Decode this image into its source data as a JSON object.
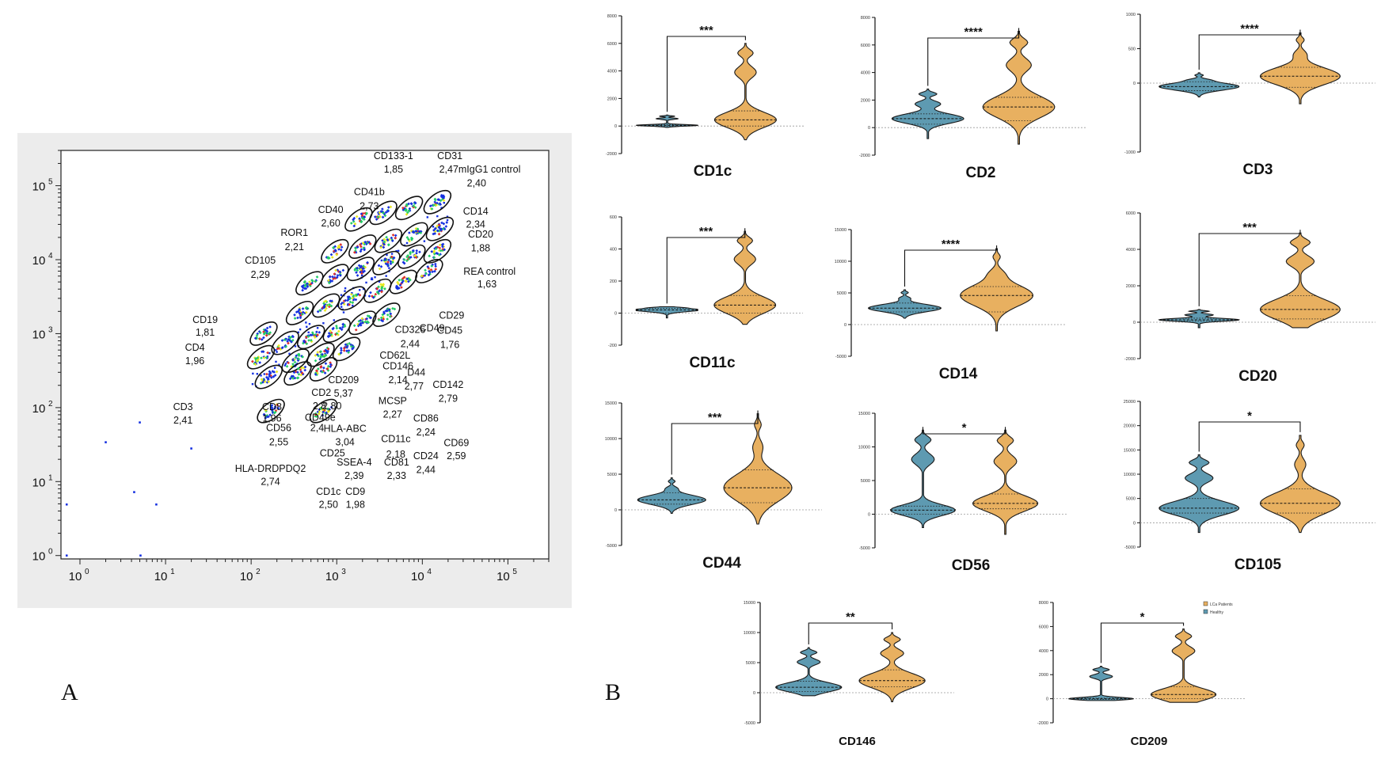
{
  "panels": {
    "a_label": "A",
    "b_label": "B"
  },
  "colors": {
    "healthy": "#5e9ab1",
    "patients": "#e8b060",
    "outline": "#1a1a1a",
    "dot_blue": "#1530e0",
    "dot_green": "#22cc66",
    "dot_yellow": "#e8e820",
    "dot_red": "#e0302a"
  },
  "legend": {
    "items": [
      "LCa Patients",
      "Healthy"
    ]
  },
  "chart_data": [
    {
      "type": "scatter",
      "title": "",
      "xscale": "log",
      "yscale": "log",
      "xlim": [
        0.6,
        300000
      ],
      "ylim": [
        0.9,
        300000
      ],
      "x_ticks": [
        {
          "base": "10",
          "exp": "0",
          "v": 1
        },
        {
          "base": "10",
          "exp": "1",
          "v": 10
        },
        {
          "base": "10",
          "exp": "2",
          "v": 100
        },
        {
          "base": "10",
          "exp": "3",
          "v": 1000
        },
        {
          "base": "10",
          "exp": "4",
          "v": 10000
        },
        {
          "base": "10",
          "exp": "5",
          "v": 100000
        }
      ],
      "y_ticks": [
        {
          "base": "10",
          "exp": "0",
          "v": 1
        },
        {
          "base": "10",
          "exp": "1",
          "v": 10
        },
        {
          "base": "10",
          "exp": "2",
          "v": 100
        },
        {
          "base": "10",
          "exp": "3",
          "v": 1000
        },
        {
          "base": "10",
          "exp": "4",
          "v": 10000
        },
        {
          "base": "10",
          "exp": "5",
          "v": 100000
        }
      ],
      "outlier_points": [
        [
          0.7,
          1
        ],
        [
          0.7,
          4.9
        ],
        [
          2,
          34
        ],
        [
          4.3,
          7.2
        ],
        [
          5,
          63
        ],
        [
          5.1,
          1
        ],
        [
          7.8,
          4.9
        ],
        [
          20,
          28
        ]
      ],
      "clusters": [
        {
          "x": 15000,
          "y": 60000
        },
        {
          "x": 7000,
          "y": 50000
        },
        {
          "x": 3500,
          "y": 43000
        },
        {
          "x": 1800,
          "y": 35000
        },
        {
          "x": 16000,
          "y": 26000
        },
        {
          "x": 8000,
          "y": 22000
        },
        {
          "x": 4000,
          "y": 18000
        },
        {
          "x": 2000,
          "y": 15000
        },
        {
          "x": 950,
          "y": 13000
        },
        {
          "x": 15000,
          "y": 13000
        },
        {
          "x": 7500,
          "y": 11000
        },
        {
          "x": 3800,
          "y": 9000
        },
        {
          "x": 1900,
          "y": 7500
        },
        {
          "x": 950,
          "y": 6000
        },
        {
          "x": 480,
          "y": 4800
        },
        {
          "x": 12000,
          "y": 7000
        },
        {
          "x": 6000,
          "y": 5000
        },
        {
          "x": 3000,
          "y": 3800
        },
        {
          "x": 1500,
          "y": 3000
        },
        {
          "x": 750,
          "y": 2400
        },
        {
          "x": 370,
          "y": 1900
        },
        {
          "x": 3800,
          "y": 1800
        },
        {
          "x": 2000,
          "y": 1400
        },
        {
          "x": 1000,
          "y": 1100
        },
        {
          "x": 500,
          "y": 900
        },
        {
          "x": 250,
          "y": 750
        },
        {
          "x": 140,
          "y": 1000
        },
        {
          "x": 1300,
          "y": 620
        },
        {
          "x": 650,
          "y": 520
        },
        {
          "x": 330,
          "y": 430
        },
        {
          "x": 130,
          "y": 480
        },
        {
          "x": 700,
          "y": 330
        },
        {
          "x": 350,
          "y": 290
        },
        {
          "x": 160,
          "y": 260
        },
        {
          "x": 170,
          "y": 90
        },
        {
          "x": 700,
          "y": 90
        }
      ],
      "annotations": [
        {
          "text": "CD133-1",
          "x": 4600,
          "y": 230000
        },
        {
          "text": "1,85",
          "x": 4600,
          "y": 150000
        },
        {
          "text": "CD31",
          "x": 21000,
          "y": 230000
        },
        {
          "text": "2,47mIgG1 control",
          "x": 47000,
          "y": 150000
        },
        {
          "text": "2,40",
          "x": 43000,
          "y": 98000
        },
        {
          "text": "CD41b",
          "x": 2400,
          "y": 75000
        },
        {
          "text": "2,73",
          "x": 2400,
          "y": 48000
        },
        {
          "text": "CD40",
          "x": 850,
          "y": 43000
        },
        {
          "text": "2,60",
          "x": 850,
          "y": 28000
        },
        {
          "text": "CD14",
          "x": 42000,
          "y": 41000
        },
        {
          "text": "2,34",
          "x": 42000,
          "y": 27000
        },
        {
          "text": "CD20",
          "x": 48000,
          "y": 20000
        },
        {
          "text": "1,88",
          "x": 48000,
          "y": 13000
        },
        {
          "text": "ROR1",
          "x": 320,
          "y": 21000
        },
        {
          "text": "2,21",
          "x": 320,
          "y": 13500
        },
        {
          "text": "CD105",
          "x": 128,
          "y": 8800
        },
        {
          "text": "2,29",
          "x": 128,
          "y": 5700
        },
        {
          "text": "REA control",
          "x": 61000,
          "y": 6300
        },
        {
          "text": "1,63",
          "x": 57000,
          "y": 4200
        },
        {
          "text": "CD19",
          "x": 29,
          "y": 1400
        },
        {
          "text": "1,81",
          "x": 29,
          "y": 940
        },
        {
          "text": "CD29",
          "x": 22000,
          "y": 1600
        },
        {
          "text": "CD49",
          "x": 13000,
          "y": 1080
        },
        {
          "text": "",
          "x": 17000,
          "y": 1080
        },
        {
          "text": "CD326",
          "x": 7200,
          "y": 1020
        },
        {
          "text": "2,44",
          "x": 7200,
          "y": 660
        },
        {
          "text": "CD45",
          "x": 21000,
          "y": 1000
        },
        {
          "text": "1,76",
          "x": 21000,
          "y": 640
        },
        {
          "text": "CD4",
          "x": 22,
          "y": 590
        },
        {
          "text": "1,96",
          "x": 22,
          "y": 385
        },
        {
          "text": "CD62L",
          "x": 4800,
          "y": 460
        },
        {
          "text": "CD146",
          "x": 5200,
          "y": 330
        },
        {
          "text": "2,14",
          "x": 5200,
          "y": 214
        },
        {
          "text": "D44",
          "x": 8500,
          "y": 270
        },
        {
          "text": "2,77",
          "x": 8000,
          "y": 175
        },
        {
          "text": "CD142",
          "x": 20000,
          "y": 185
        },
        {
          "text": "2,79",
          "x": 20000,
          "y": 120
        },
        {
          "text": "CD209",
          "x": 1200,
          "y": 215
        },
        {
          "text": "5,37",
          "x": 1200,
          "y": 140
        },
        {
          "text": "CD2",
          "x": 660,
          "y": 145
        },
        {
          "text": "2,8",
          "x": 630,
          "y": 95
        },
        {
          "text": "2,80",
          "x": 880,
          "y": 95
        },
        {
          "text": "CD3",
          "x": 16,
          "y": 93
        },
        {
          "text": "2,41",
          "x": 16,
          "y": 61
        },
        {
          "text": "CD8",
          "x": 175,
          "y": 93
        },
        {
          "text": "1,96",
          "x": 175,
          "y": 65
        },
        {
          "text": "CD49e",
          "x": 640,
          "y": 66
        },
        {
          "text": "MCSP",
          "x": 4500,
          "y": 112
        },
        {
          "text": "2,27",
          "x": 4500,
          "y": 73
        },
        {
          "text": "CD86",
          "x": 11000,
          "y": 65
        },
        {
          "text": "2,24",
          "x": 11000,
          "y": 42
        },
        {
          "text": "CD56",
          "x": 210,
          "y": 48
        },
        {
          "text": "2,4",
          "x": 590,
          "y": 48
        },
        {
          "text": "2,55",
          "x": 210,
          "y": 31
        },
        {
          "text": "HLA-ABC",
          "x": 1250,
          "y": 47
        },
        {
          "text": "3,04",
          "x": 1250,
          "y": 31
        },
        {
          "text": "CD69",
          "x": 25000,
          "y": 30
        },
        {
          "text": "2,59",
          "x": 25000,
          "y": 20
        },
        {
          "text": "CD11c",
          "x": 4900,
          "y": 34
        },
        {
          "text": "2,18",
          "x": 4900,
          "y": 21
        },
        {
          "text": "CD25",
          "x": 890,
          "y": 22
        },
        {
          "text": "SSEA-4",
          "x": 1600,
          "y": 16.5
        },
        {
          "text": "2,39",
          "x": 1600,
          "y": 10.8
        },
        {
          "text": "CD81",
          "x": 5000,
          "y": 16.5
        },
        {
          "text": "2,33",
          "x": 5000,
          "y": 10.8
        },
        {
          "text": "CD24",
          "x": 11000,
          "y": 20
        },
        {
          "text": "2,44",
          "x": 11000,
          "y": 13
        },
        {
          "text": "HLA-DRDPDQ2",
          "x": 168,
          "y": 13.5
        },
        {
          "text": "2,74",
          "x": 168,
          "y": 9
        },
        {
          "text": "CD1c",
          "x": 800,
          "y": 6.6
        },
        {
          "text": "2,50",
          "x": 800,
          "y": 4.4
        },
        {
          "text": "CD9",
          "x": 1650,
          "y": 6.6
        },
        {
          "text": "1,98",
          "x": 1650,
          "y": 4.4
        }
      ]
    },
    {
      "type": "violin",
      "marker": "CD1c",
      "sig": "***",
      "yticks": [
        -2000,
        0,
        2000,
        4000,
        6000,
        8000
      ],
      "ylim": [
        -2000,
        8000
      ],
      "groups": [
        {
          "name": "Healthy",
          "min": -100,
          "max": 800,
          "q1": 0,
          "median": 50,
          "q3": 100
        },
        {
          "name": "LCa Patients",
          "min": -1000,
          "max": 6000,
          "q1": 0,
          "median": 450,
          "q3": 1100
        }
      ]
    },
    {
      "type": "violin",
      "marker": "CD2",
      "sig": "****",
      "yticks": [
        -2000,
        0,
        2000,
        4000,
        6000,
        8000
      ],
      "ylim": [
        -2000,
        8000
      ],
      "groups": [
        {
          "name": "Healthy",
          "min": -800,
          "max": 2800,
          "q1": 250,
          "median": 650,
          "q3": 1000
        },
        {
          "name": "LCa Patients",
          "min": -1200,
          "max": 7000,
          "q1": 500,
          "median": 1500,
          "q3": 2200
        }
      ]
    },
    {
      "type": "violin",
      "marker": "CD3",
      "sig": "****",
      "yticks": [
        -1000,
        0,
        500,
        1000
      ],
      "ylim": [
        -1000,
        1000
      ],
      "groups": [
        {
          "name": "Healthy",
          "min": -200,
          "max": 150,
          "q1": -110,
          "median": -50,
          "q3": 20
        },
        {
          "name": "LCa Patients",
          "min": -300,
          "max": 730,
          "q1": -60,
          "median": 100,
          "q3": 230
        }
      ]
    },
    {
      "type": "violin",
      "marker": "CD11c",
      "sig": "***",
      "yticks": [
        -200,
        0,
        200,
        400,
        600
      ],
      "ylim": [
        -200,
        600
      ],
      "groups": [
        {
          "name": "Healthy",
          "min": -30,
          "max": 40,
          "q1": 0,
          "median": 20,
          "q3": 30
        },
        {
          "name": "LCa Patients",
          "min": -70,
          "max": 510,
          "q1": 0,
          "median": 50,
          "q3": 110
        }
      ]
    },
    {
      "type": "violin",
      "marker": "CD14",
      "sig": "****",
      "yticks": [
        -5000,
        0,
        5000,
        10000,
        15000
      ],
      "ylim": [
        -5000,
        15000
      ],
      "groups": [
        {
          "name": "Healthy",
          "min": 1000,
          "max": 5500,
          "q1": 2000,
          "median": 2600,
          "q3": 3400
        },
        {
          "name": "LCa Patients",
          "min": -1000,
          "max": 12000,
          "q1": 2000,
          "median": 4600,
          "q3": 6000
        }
      ]
    },
    {
      "type": "violin",
      "marker": "CD20",
      "sig": "***",
      "yticks": [
        -2000,
        0,
        2000,
        4000,
        6000
      ],
      "ylim": [
        -2000,
        6000
      ],
      "groups": [
        {
          "name": "Healthy",
          "min": -300,
          "max": 700,
          "q1": 60,
          "median": 130,
          "q3": 220
        },
        {
          "name": "LCa Patients",
          "min": -300,
          "max": 4900,
          "q1": 180,
          "median": 700,
          "q3": 1450
        }
      ]
    },
    {
      "type": "violin",
      "marker": "CD44",
      "sig": "***",
      "yticks": [
        -5000,
        0,
        5000,
        10000,
        15000
      ],
      "ylim": [
        -5000,
        15000
      ],
      "groups": [
        {
          "name": "Healthy",
          "min": -500,
          "max": 4500,
          "q1": 800,
          "median": 1400,
          "q3": 2400
        },
        {
          "name": "LCa Patients",
          "min": -2000,
          "max": 13500,
          "q1": 1000,
          "median": 3100,
          "q3": 5600
        }
      ]
    },
    {
      "type": "violin",
      "marker": "CD56",
      "sig": "*",
      "yticks": [
        -5000,
        0,
        5000,
        10000,
        15000
      ],
      "ylim": [
        -5000,
        15000
      ],
      "groups": [
        {
          "name": "Healthy",
          "min": -2000,
          "max": 12500,
          "q1": 0,
          "median": 600,
          "q3": 1200
        },
        {
          "name": "LCa Patients",
          "min": -3000,
          "max": 12500,
          "q1": 800,
          "median": 1600,
          "q3": 3000
        }
      ]
    },
    {
      "type": "violin",
      "marker": "CD105",
      "sig": "*",
      "yticks": [
        -5000,
        0,
        5000,
        10000,
        15000,
        20000,
        25000
      ],
      "ylim": [
        -5000,
        25000
      ],
      "groups": [
        {
          "name": "Healthy",
          "min": -2000,
          "max": 14000,
          "q1": 2000,
          "median": 3000,
          "q3": 5000
        },
        {
          "name": "LCa Patients",
          "min": -2000,
          "max": 18000,
          "q1": 2000,
          "median": 4000,
          "q3": 7000
        }
      ]
    },
    {
      "type": "violin",
      "marker": "CD146",
      "sig": "**",
      "yticks": [
        -5000,
        0,
        5000,
        10000,
        15000
      ],
      "ylim": [
        -5000,
        15000
      ],
      "groups": [
        {
          "name": "Healthy",
          "min": -500,
          "max": 7500,
          "q1": 200,
          "median": 900,
          "q3": 1900
        },
        {
          "name": "LCa Patients",
          "min": -1500,
          "max": 10000,
          "q1": 1000,
          "median": 2000,
          "q3": 3800
        }
      ]
    },
    {
      "type": "violin",
      "marker": "CD209",
      "sig": "*",
      "yticks": [
        -2000,
        0,
        2000,
        4000,
        6000,
        8000
      ],
      "ylim": [
        -2000,
        8000
      ],
      "groups": [
        {
          "name": "Healthy",
          "min": -150,
          "max": 2700,
          "q1": -50,
          "median": 0,
          "q3": 50
        },
        {
          "name": "LCa Patients",
          "min": -300,
          "max": 5800,
          "q1": 0,
          "median": 350,
          "q3": 1000
        }
      ]
    }
  ]
}
